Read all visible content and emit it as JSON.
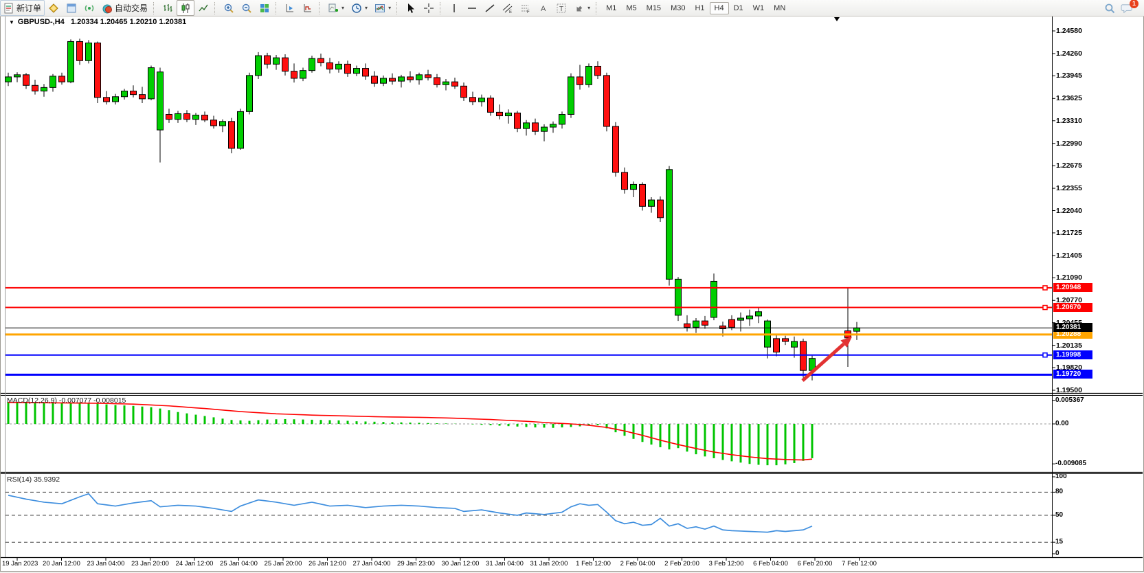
{
  "toolbar": {
    "new_order_label": "新订单",
    "autotrading_label": "自动交易",
    "timeframes": [
      "M1",
      "M5",
      "M15",
      "M30",
      "H1",
      "H4",
      "D1",
      "W1",
      "MN"
    ],
    "active_timeframe": "H4",
    "notification_count": "1"
  },
  "chart": {
    "title": {
      "symbol_period": "GBPUSD-,H4",
      "open": "1.20334",
      "high": "1.20465",
      "low": "1.20210",
      "close": "1.20381"
    }
  },
  "chart_data": {
    "type": "candlestick",
    "symbol": "GBPUSD-",
    "period": "H4",
    "current_bar": {
      "open": 1.20334,
      "high": 1.20465,
      "low": 1.2021,
      "close": 1.20381
    },
    "price_axis_ticks": [
      "1.24580",
      "1.24260",
      "1.23945",
      "1.23625",
      "1.23310",
      "1.22990",
      "1.22675",
      "1.22355",
      "1.22040",
      "1.21725",
      "1.21405",
      "1.21090",
      "1.20770",
      "1.20455",
      "1.20135",
      "1.19820",
      "1.19500"
    ],
    "current_price_line": {
      "price": 1.20381,
      "label": "1.20381",
      "color": "#000000"
    },
    "hlines": [
      {
        "label": "1.20948",
        "price": 1.20948,
        "color": "#FE0000",
        "width": 2,
        "handle": true
      },
      {
        "label": "1.20670",
        "price": 1.2067,
        "color": "#FE0000",
        "width": 2,
        "handle": true
      },
      {
        "label": "1.20288",
        "price": 1.20288,
        "color": "#FFA500",
        "width": 3,
        "handle": false
      },
      {
        "label": "1.19998",
        "price": 1.19998,
        "color": "#0000FE",
        "width": 2,
        "handle": true
      },
      {
        "label": "1.19720",
        "price": 1.1972,
        "color": "#0000FE",
        "width": 3,
        "handle": false
      }
    ],
    "time_labels": [
      "19 Jan 2023",
      "20 Jan 12:00",
      "23 Jan 04:00",
      "23 Jan 20:00",
      "24 Jan 12:00",
      "25 Jan 04:00",
      "25 Jan 20:00",
      "26 Jan 12:00",
      "27 Jan 04:00",
      "29 Jan 23:00",
      "30 Jan 12:00",
      "31 Jan 04:00",
      "31 Jan 20:00",
      "1 Feb 12:00",
      "2 Feb 04:00",
      "2 Feb 20:00",
      "3 Feb 12:00",
      "6 Feb 04:00",
      "6 Feb 20:00",
      "7 Feb 12:00"
    ],
    "candles": [
      [
        1.2386,
        1.2399,
        1.238,
        1.2393
      ],
      [
        1.2393,
        1.23995,
        1.23855,
        1.2396
      ],
      [
        1.2396,
        1.23985,
        1.2376,
        1.2381
      ],
      [
        1.2381,
        1.2389,
        1.2368,
        1.2373
      ],
      [
        1.2373,
        1.2383,
        1.2365,
        1.2378
      ],
      [
        1.2378,
        1.2397,
        1.2372,
        1.2394
      ],
      [
        1.2394,
        1.2399,
        1.2382,
        1.2386
      ],
      [
        1.2386,
        1.2446,
        1.2384,
        1.2443
      ],
      [
        1.2443,
        1.2447,
        1.241,
        1.2416
      ],
      [
        1.2416,
        1.2445,
        1.2412,
        1.2441
      ],
      [
        1.2441,
        1.2443,
        1.2356,
        1.2364
      ],
      [
        1.2364,
        1.2373,
        1.2354,
        1.2358
      ],
      [
        1.2358,
        1.2369,
        1.2354,
        1.2365
      ],
      [
        1.2365,
        1.2376,
        1.2361,
        1.2373
      ],
      [
        1.2373,
        1.2381,
        1.2364,
        1.2368
      ],
      [
        1.2368,
        1.2379,
        1.2356,
        1.2362
      ],
      [
        1.2362,
        1.2409,
        1.236,
        1.2406
      ],
      [
        1.2318,
        1.2406,
        1.2272,
        1.24
      ],
      [
        1.234,
        1.2348,
        1.2328,
        1.2333
      ],
      [
        1.2333,
        1.2345,
        1.2328,
        1.2341
      ],
      [
        1.2341,
        1.2346,
        1.2329,
        1.2333
      ],
      [
        1.2333,
        1.2342,
        1.2325,
        1.2339
      ],
      [
        1.2339,
        1.2344,
        1.2329,
        1.2332
      ],
      [
        1.2332,
        1.2338,
        1.232,
        1.2324
      ],
      [
        1.2324,
        1.2333,
        1.2315,
        1.233
      ],
      [
        1.233,
        1.2335,
        1.2285,
        1.2292
      ],
      [
        1.2292,
        1.2348,
        1.229,
        1.2344
      ],
      [
        1.2344,
        1.2399,
        1.234,
        1.2395
      ],
      [
        1.2395,
        1.2428,
        1.239,
        1.2423
      ],
      [
        1.2423,
        1.2427,
        1.2405,
        1.2411
      ],
      [
        1.2411,
        1.2424,
        1.2403,
        1.242
      ],
      [
        1.242,
        1.2425,
        1.2395,
        1.2401
      ],
      [
        1.2401,
        1.2412,
        1.2385,
        1.2391
      ],
      [
        1.2391,
        1.2406,
        1.2387,
        1.2402
      ],
      [
        1.2402,
        1.2423,
        1.2399,
        1.2419
      ],
      [
        1.2419,
        1.2426,
        1.2408,
        1.2413
      ],
      [
        1.2413,
        1.242,
        1.2398,
        1.2404
      ],
      [
        1.2404,
        1.2415,
        1.2399,
        1.2411
      ],
      [
        1.2411,
        1.2416,
        1.2393,
        1.2398
      ],
      [
        1.2398,
        1.2409,
        1.2394,
        1.2405
      ],
      [
        1.2405,
        1.2412,
        1.2389,
        1.2394
      ],
      [
        1.2394,
        1.2401,
        1.2379,
        1.2384
      ],
      [
        1.2384,
        1.2395,
        1.238,
        1.2391
      ],
      [
        1.2391,
        1.2398,
        1.2382,
        1.2387
      ],
      [
        1.2387,
        1.2396,
        1.2378,
        1.2393
      ],
      [
        1.2393,
        1.2401,
        1.2385,
        1.2389
      ],
      [
        1.2389,
        1.2399,
        1.2382,
        1.2396
      ],
      [
        1.2396,
        1.2403,
        1.2388,
        1.2392
      ],
      [
        1.2392,
        1.2397,
        1.2378,
        1.2382
      ],
      [
        1.2382,
        1.239,
        1.2374,
        1.2386
      ],
      [
        1.2386,
        1.2392,
        1.2376,
        1.238
      ],
      [
        1.238,
        1.2385,
        1.2359,
        1.2364
      ],
      [
        1.2364,
        1.2372,
        1.2353,
        1.2358
      ],
      [
        1.2358,
        1.2368,
        1.2351,
        1.2363
      ],
      [
        1.2363,
        1.2367,
        1.2338,
        1.2343
      ],
      [
        1.2343,
        1.2354,
        1.2333,
        1.2338
      ],
      [
        1.2338,
        1.2347,
        1.2327,
        1.2342
      ],
      [
        1.2342,
        1.2345,
        1.2315,
        1.232
      ],
      [
        1.232,
        1.2332,
        1.231,
        1.2328
      ],
      [
        1.2328,
        1.2334,
        1.2311,
        1.2316
      ],
      [
        1.2316,
        1.2326,
        1.2302,
        1.2322
      ],
      [
        1.2322,
        1.233,
        1.2314,
        1.2326
      ],
      [
        1.2326,
        1.2344,
        1.232,
        1.234
      ],
      [
        1.234,
        1.2398,
        1.2335,
        1.2393
      ],
      [
        1.2393,
        1.241,
        1.2375,
        1.2382
      ],
      [
        1.2382,
        1.2412,
        1.2378,
        1.2408
      ],
      [
        1.2408,
        1.2415,
        1.239,
        1.2395
      ],
      [
        1.2395,
        1.2399,
        1.2316,
        1.2323
      ],
      [
        1.2323,
        1.2329,
        1.2252,
        1.2258
      ],
      [
        1.2258,
        1.2265,
        1.2228,
        1.2234
      ],
      [
        1.2234,
        1.2245,
        1.2223,
        1.2241
      ],
      [
        1.2241,
        1.2244,
        1.2204,
        1.221
      ],
      [
        1.221,
        1.2223,
        1.2201,
        1.2219
      ],
      [
        1.2219,
        1.2224,
        1.2188,
        1.2194
      ],
      [
        1.2107,
        1.2267,
        1.2098,
        1.2262
      ],
      [
        1.2056,
        1.211,
        1.2048,
        1.2107
      ],
      [
        1.2044,
        1.2056,
        1.2033,
        1.2039
      ],
      [
        1.2039,
        1.2052,
        1.2031,
        1.2048
      ],
      [
        1.2048,
        1.2055,
        1.2037,
        1.2042
      ],
      [
        1.2053,
        1.2115,
        1.2049,
        1.2104
      ],
      [
        1.2041,
        1.2047,
        1.2026,
        1.2037
      ],
      [
        1.205,
        1.2056,
        1.2035,
        1.2039
      ],
      [
        1.2049,
        1.206,
        1.2033,
        1.2052
      ],
      [
        1.2051,
        1.2064,
        1.2041,
        1.2055
      ],
      [
        1.2055,
        1.2068,
        1.2045,
        1.2061
      ],
      [
        1.2011,
        1.205,
        1.1995,
        1.2048
      ],
      [
        1.2023,
        1.2028,
        1.1998,
        1.2004
      ],
      [
        1.2023,
        1.2027,
        1.2014,
        1.2019
      ],
      [
        1.2011,
        1.2026,
        1.1996,
        1.2019
      ],
      [
        1.2019,
        1.2023,
        1.1968,
        1.1978
      ],
      [
        1.1978,
        1.1999,
        1.1964,
        1.1995
      ],
      null,
      null,
      null,
      [
        1.2034,
        1.2095,
        1.1983,
        1.2024
      ],
      [
        1.20334,
        1.20465,
        1.2021,
        1.20381
      ]
    ],
    "up_color": "#00CE00",
    "down_color": "#FF1010",
    "macd": {
      "label": "MACD(12,26,9)",
      "value_main": "-0.007077",
      "value_signal": "-0.008015",
      "axis": [
        "0.005367",
        "0.00",
        "-0.009085"
      ],
      "bar_color": "#00C400",
      "signal_color": "#FF0000",
      "main_points": [
        [
          0,
          0.005
        ],
        [
          3,
          0.0048
        ],
        [
          6,
          0.0047
        ],
        [
          8,
          0.0049
        ],
        [
          10,
          0.0046
        ],
        [
          12,
          0.0043
        ],
        [
          14,
          0.0041
        ],
        [
          16,
          0.0038
        ],
        [
          17,
          0.0035
        ],
        [
          19,
          0.0027
        ],
        [
          21,
          0.0021
        ],
        [
          23,
          0.0015
        ],
        [
          25,
          0.0009
        ],
        [
          27,
          0.0007
        ],
        [
          29,
          0.001
        ],
        [
          31,
          0.0011
        ],
        [
          33,
          0.001
        ],
        [
          35,
          0.0009
        ],
        [
          37,
          0.0008
        ],
        [
          39,
          0.0006
        ],
        [
          41,
          0.0005
        ],
        [
          43,
          0.0004
        ],
        [
          45,
          0.0003
        ],
        [
          47,
          0.0002
        ],
        [
          49,
          0.0001
        ],
        [
          51,
          0.0
        ],
        [
          53,
          -0.0002
        ],
        [
          55,
          -0.0004
        ],
        [
          57,
          -0.0006
        ],
        [
          59,
          -0.0008
        ],
        [
          61,
          -0.0009
        ],
        [
          63,
          -0.0007
        ],
        [
          65,
          -0.0004
        ],
        [
          66,
          -0.0003
        ],
        [
          67,
          -0.001
        ],
        [
          68,
          -0.0019
        ],
        [
          69,
          -0.0027
        ],
        [
          70,
          -0.0034
        ],
        [
          71,
          -0.0041
        ],
        [
          72,
          -0.0047
        ],
        [
          73,
          -0.0053
        ],
        [
          74,
          -0.0058
        ],
        [
          75,
          -0.0055
        ],
        [
          76,
          -0.0063
        ],
        [
          77,
          -0.0069
        ],
        [
          78,
          -0.0074
        ],
        [
          79,
          -0.0078
        ],
        [
          80,
          -0.0082
        ],
        [
          81,
          -0.0085
        ],
        [
          82,
          -0.0088
        ],
        [
          83,
          -0.0091
        ],
        [
          84,
          -0.0093
        ],
        [
          85,
          -0.0094
        ],
        [
          86,
          -0.0094
        ],
        [
          87,
          -0.0092
        ],
        [
          88,
          -0.0089
        ],
        [
          89,
          -0.0084
        ],
        [
          90,
          -0.0078
        ]
      ],
      "signal_points": [
        [
          0,
          0.0049
        ],
        [
          5,
          0.0048
        ],
        [
          10,
          0.0047
        ],
        [
          14,
          0.0045
        ],
        [
          18,
          0.0041
        ],
        [
          22,
          0.0035
        ],
        [
          26,
          0.0028
        ],
        [
          30,
          0.0023
        ],
        [
          34,
          0.002
        ],
        [
          38,
          0.0018
        ],
        [
          42,
          0.0016
        ],
        [
          46,
          0.0015
        ],
        [
          50,
          0.0013
        ],
        [
          54,
          0.001
        ],
        [
          58,
          0.0006
        ],
        [
          61,
          0.0002
        ],
        [
          63,
          0.0
        ],
        [
          65,
          -0.0003
        ],
        [
          67,
          -0.0008
        ],
        [
          69,
          -0.0016
        ],
        [
          71,
          -0.0026
        ],
        [
          73,
          -0.0037
        ],
        [
          75,
          -0.0047
        ],
        [
          77,
          -0.0056
        ],
        [
          79,
          -0.0064
        ],
        [
          81,
          -0.007
        ],
        [
          83,
          -0.0075
        ],
        [
          85,
          -0.0079
        ],
        [
          87,
          -0.0081
        ],
        [
          89,
          -0.0082
        ],
        [
          90,
          -0.008
        ]
      ]
    },
    "rsi": {
      "label": "RSI(14)",
      "value": "35.9392",
      "axis": [
        "100",
        "80",
        "50",
        "15",
        "0"
      ],
      "levels": [
        80,
        50,
        15
      ],
      "line_color": "#3E8EDE",
      "points": [
        [
          0,
          76
        ],
        [
          2,
          71
        ],
        [
          4,
          67
        ],
        [
          6,
          65
        ],
        [
          8,
          74
        ],
        [
          9,
          78
        ],
        [
          10,
          65
        ],
        [
          12,
          62
        ],
        [
          14,
          66
        ],
        [
          16,
          69
        ],
        [
          17,
          61
        ],
        [
          19,
          63
        ],
        [
          21,
          62
        ],
        [
          23,
          59
        ],
        [
          25,
          55
        ],
        [
          26,
          62
        ],
        [
          28,
          70
        ],
        [
          30,
          67
        ],
        [
          32,
          63
        ],
        [
          34,
          67
        ],
        [
          36,
          62
        ],
        [
          38,
          63
        ],
        [
          40,
          60
        ],
        [
          42,
          62
        ],
        [
          44,
          63
        ],
        [
          46,
          62
        ],
        [
          48,
          60
        ],
        [
          50,
          59
        ],
        [
          51,
          55
        ],
        [
          53,
          57
        ],
        [
          55,
          53
        ],
        [
          57,
          50
        ],
        [
          58,
          53
        ],
        [
          60,
          51
        ],
        [
          62,
          54
        ],
        [
          63,
          61
        ],
        [
          64,
          65
        ],
        [
          65,
          63
        ],
        [
          66,
          64
        ],
        [
          67,
          54
        ],
        [
          68,
          43
        ],
        [
          69,
          39
        ],
        [
          70,
          41
        ],
        [
          71,
          37
        ],
        [
          72,
          38
        ],
        [
          73,
          46
        ],
        [
          74,
          36
        ],
        [
          75,
          39
        ],
        [
          76,
          33
        ],
        [
          77,
          35
        ],
        [
          78,
          32
        ],
        [
          79,
          36
        ],
        [
          80,
          31
        ],
        [
          81,
          30
        ],
        [
          83,
          29
        ],
        [
          85,
          28
        ],
        [
          86,
          30
        ],
        [
          87,
          29
        ],
        [
          88,
          30
        ],
        [
          89,
          31
        ],
        [
          90,
          35.94
        ]
      ]
    },
    "annotation_arrow": {
      "color": "#E23232",
      "from": [
        1168,
        554
      ],
      "to": [
        1240,
        490
      ]
    }
  }
}
